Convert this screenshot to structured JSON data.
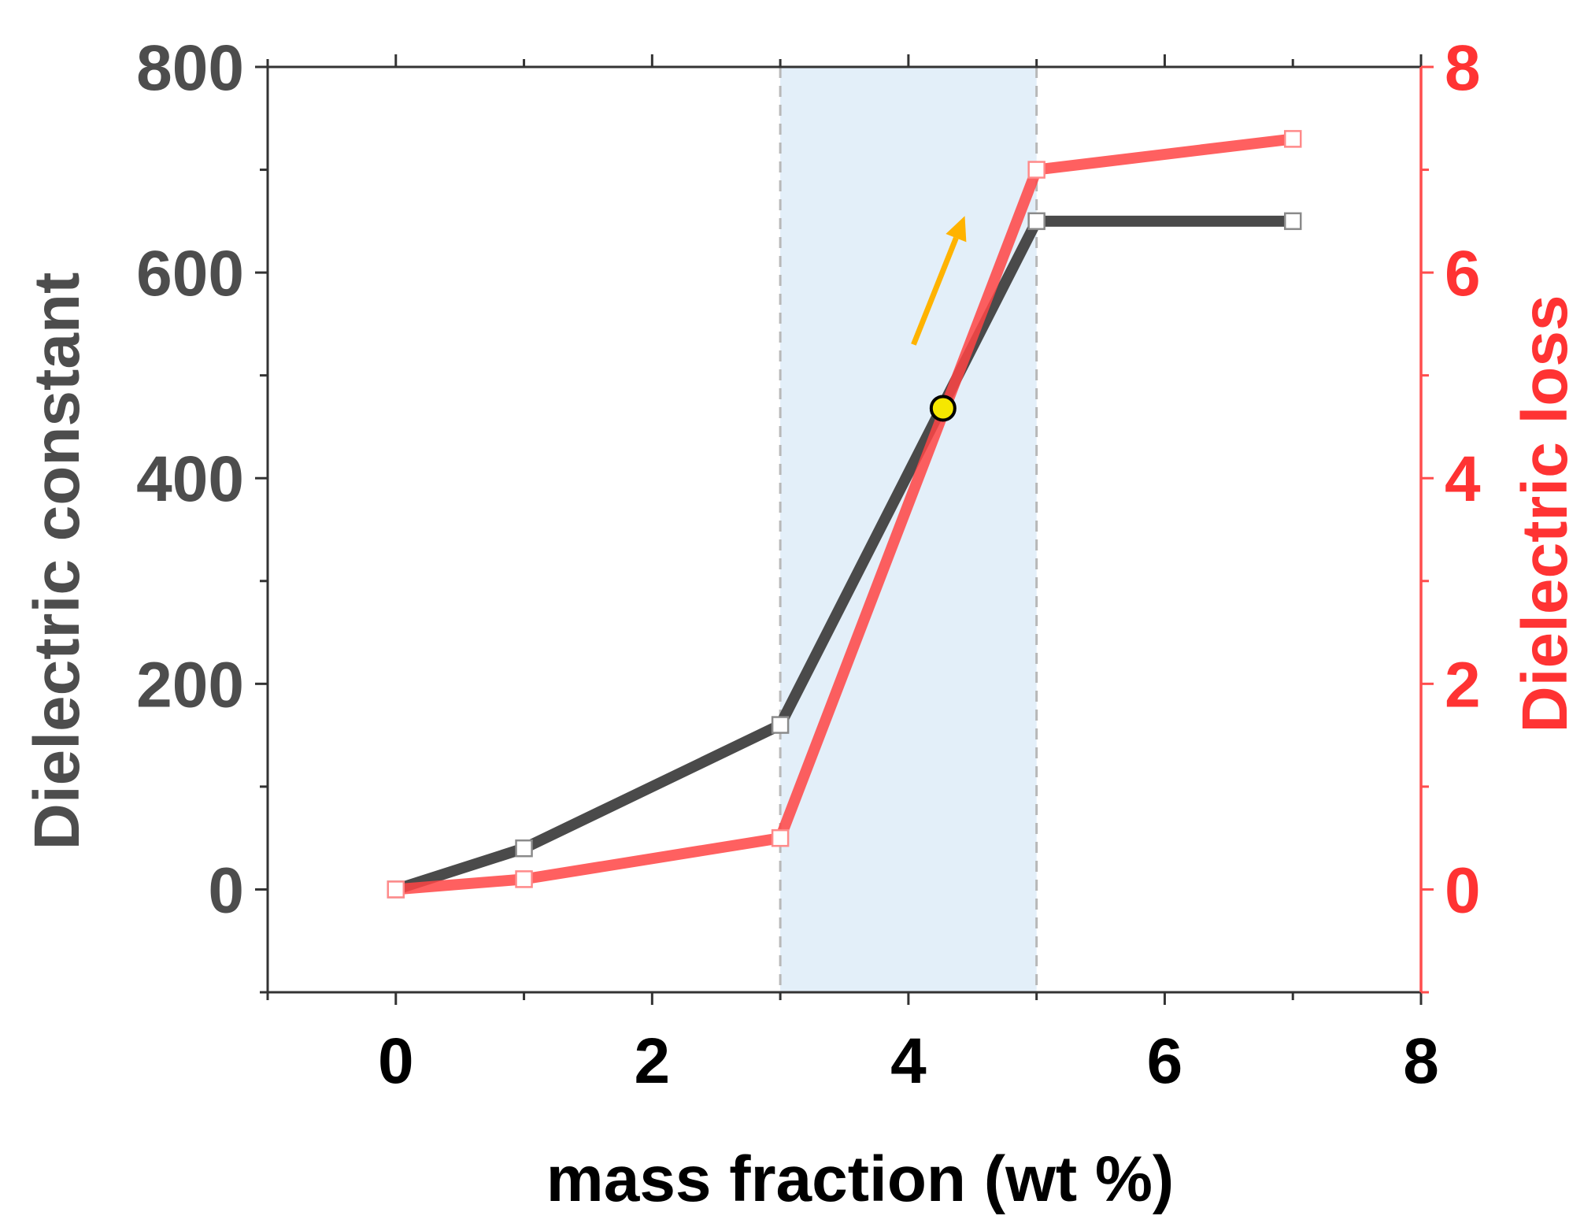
{
  "chart_data": {
    "type": "line",
    "title": "",
    "xlabel": "mass fraction (wt %)",
    "ylabel_left": "Dielectric constant",
    "ylabel_right": "Dielectric loss",
    "xlim": [
      -1,
      8
    ],
    "ylim_left": [
      -100,
      800
    ],
    "ylim_right": [
      -1,
      8
    ],
    "x_ticks": [
      0,
      2,
      4,
      6,
      8
    ],
    "y_left_ticks": [
      0,
      200,
      400,
      600,
      800
    ],
    "y_right_ticks": [
      0,
      2,
      4,
      6,
      8
    ],
    "shaded_region": {
      "x_start": 3,
      "x_end": 5,
      "color": "#e3eff9"
    },
    "series": [
      {
        "name": "Dielectric constant",
        "axis": "left",
        "color": "#4a4a4a",
        "x": [
          0,
          1,
          3,
          5,
          7
        ],
        "values": [
          0,
          40,
          160,
          650,
          650
        ]
      },
      {
        "name": "Dielectric loss",
        "axis": "right",
        "color": "#ff4444",
        "x": [
          0,
          1,
          3,
          5,
          7
        ],
        "values": [
          0,
          0.1,
          0.5,
          7.0,
          7.3
        ]
      }
    ],
    "annotations": {
      "intersection_marker": {
        "x": 4.27,
        "y_left": 468,
        "fill": "#f5e700"
      },
      "arrow": {
        "color": "#ffb300",
        "from": [
          4.04,
          530
        ],
        "to": [
          4.44,
          655
        ]
      }
    },
    "colors": {
      "left_axis_text": "#4d4d4d",
      "right_axis_text": "#ff3333",
      "bottom_axis_text": "#000000"
    }
  }
}
